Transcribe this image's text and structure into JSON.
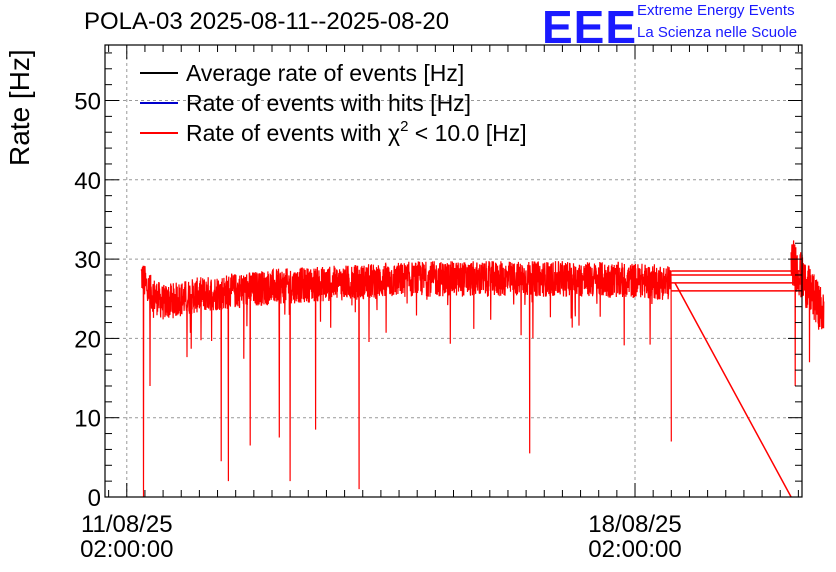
{
  "header": {
    "title": "POLA-03 2025-08-11--2025-08-20",
    "logo_text": "EEE",
    "logo_line1": "Extreme Energy Events",
    "logo_line2": "La Scienza nelle Scuole"
  },
  "colors": {
    "average": "#000000",
    "hits": "#0000cc",
    "chi2": "#ff0000",
    "logo": "#1a1aff"
  },
  "chart_data": {
    "type": "line",
    "title": "POLA-03 2025-08-11--2025-08-20",
    "ylabel": "Rate [Hz]",
    "xlabel": "",
    "ylim": [
      0,
      57
    ],
    "yticks": [
      0,
      10,
      20,
      30,
      40,
      50
    ],
    "x_unit": "days since 11/08/25 02:00:00",
    "xlim": [
      -0.3,
      9.3
    ],
    "xticks": [
      {
        "x": 0,
        "label1": "11/08/25",
        "label2": "02:00:00"
      },
      {
        "x": 7,
        "label1": "18/08/25",
        "label2": "02:00:00"
      }
    ],
    "grid": true,
    "legend_position": "top-left",
    "series": [
      {
        "name": "Average rate of events [Hz]",
        "color": "#000000"
      },
      {
        "name": "Rate of events with hits [Hz]",
        "color": "#0000cc"
      },
      {
        "name": "Rate of events with χ² < 10.0 [Hz]",
        "color": "#ff0000"
      }
    ],
    "chi2_label_parts": [
      "Rate of events with χ",
      "2",
      " < 10.0 [Hz]"
    ],
    "chi2_profile": {
      "x": [
        0.2,
        0.3,
        0.5,
        1.0,
        2.0,
        3.0,
        4.0,
        5.0,
        6.0,
        7.0,
        7.5
      ],
      "y": [
        28,
        26,
        24.5,
        25.5,
        26.5,
        27,
        27.5,
        27.5,
        27.5,
        27.3,
        27
      ]
    },
    "dips": [
      {
        "x": 0.23,
        "y": 0
      },
      {
        "x": 0.32,
        "y": 14
      },
      {
        "x": 1.3,
        "y": 4.5
      },
      {
        "x": 1.4,
        "y": 2
      },
      {
        "x": 1.7,
        "y": 6.5
      },
      {
        "x": 2.1,
        "y": 7.5
      },
      {
        "x": 2.25,
        "y": 2
      },
      {
        "x": 2.6,
        "y": 8.5
      },
      {
        "x": 3.2,
        "y": 1
      },
      {
        "x": 5.55,
        "y": 5.5
      },
      {
        "x": 7.5,
        "y": 7
      }
    ],
    "gap_line": {
      "x": [
        7.55,
        9.15
      ],
      "y": [
        27,
        0
      ]
    },
    "flat_lines": [
      {
        "x": [
          7.5,
          11
        ],
        "y": 26
      },
      {
        "x": [
          7.5,
          11
        ],
        "y": 27
      },
      {
        "x": [
          7.5,
          11
        ],
        "y": 28
      },
      {
        "x": [
          7.5,
          11
        ],
        "y": 28.5
      }
    ],
    "tail": {
      "x": [
        9.15,
        9.6
      ],
      "y": [
        30,
        23
      ]
    }
  }
}
